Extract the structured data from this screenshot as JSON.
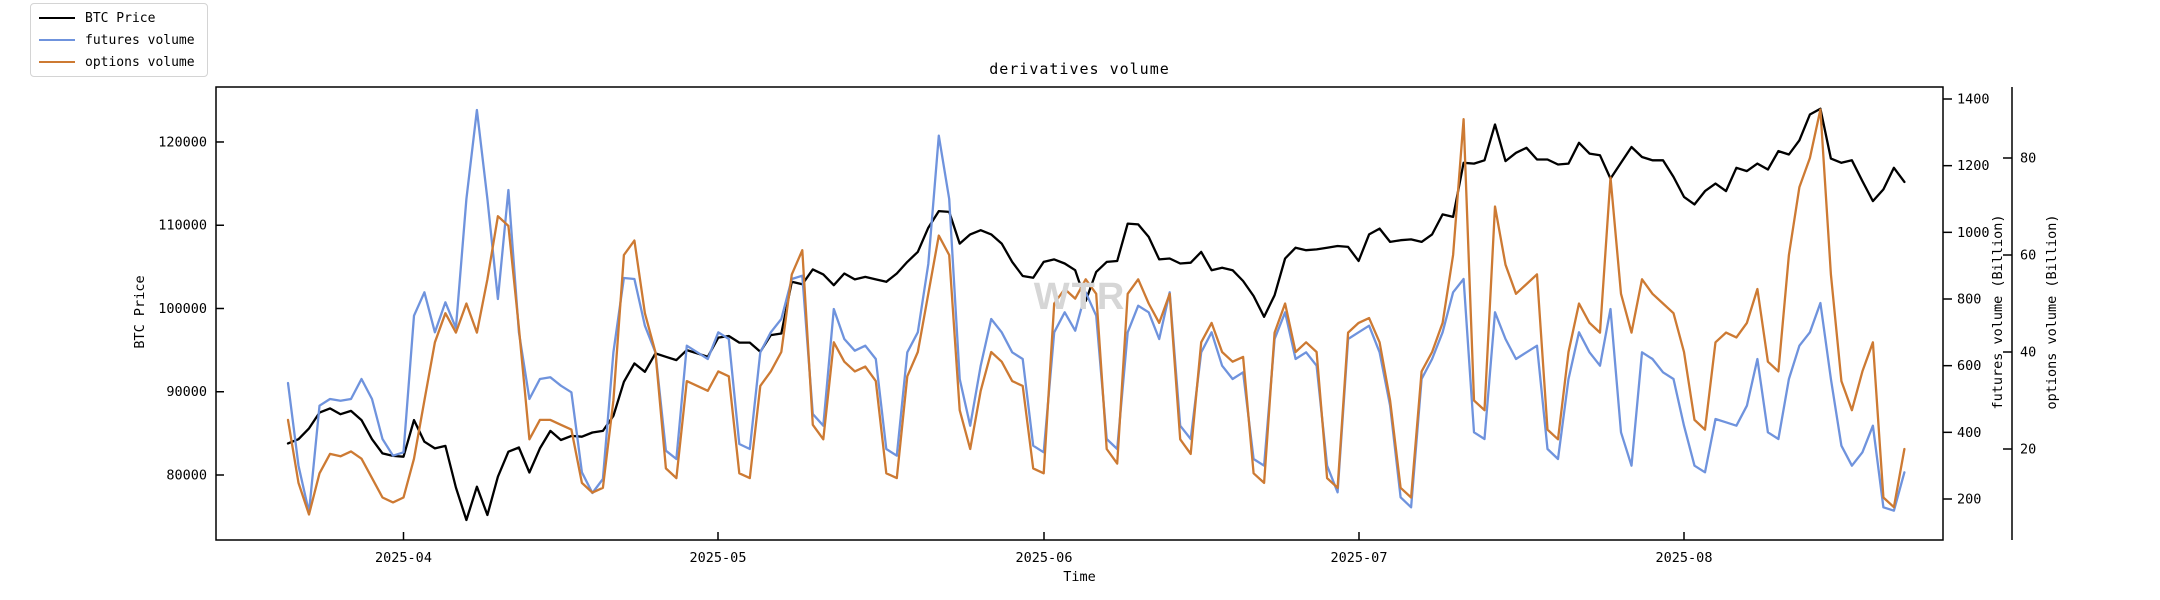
{
  "title": "derivatives volume",
  "watermark": "WTR",
  "legend": [
    {
      "label": "BTC Price",
      "color": "#000000"
    },
    {
      "label": "futures volume",
      "color": "#6f93dd"
    },
    {
      "label": "options volume",
      "color": "#cd7a33"
    }
  ],
  "axes": {
    "x": {
      "label": "Time",
      "tick_labels": [
        "2025-04",
        "2025-05",
        "2025-06",
        "2025-07",
        "2025-08"
      ]
    },
    "y_left": {
      "label": "BTC Price",
      "tick_labels": [
        "80000",
        "90000",
        "100000",
        "110000",
        "120000"
      ],
      "tick_values": [
        80000,
        90000,
        100000,
        110000,
        120000
      ]
    },
    "y_right_futures": {
      "label": "futures volume (Billion)",
      "tick_labels": [
        "200",
        "400",
        "600",
        "800",
        "1000",
        "1200",
        "1400"
      ],
      "tick_values": [
        200,
        400,
        600,
        800,
        1000,
        1200,
        1400
      ]
    },
    "y_right_options": {
      "label": "options volume (Billion)",
      "tick_labels": [
        "20",
        "40",
        "60",
        "80"
      ],
      "tick_values": [
        20,
        40,
        60,
        80
      ]
    }
  },
  "colors": {
    "btc": "#000000",
    "futures": "#6f93dd",
    "options": "#cd7a33",
    "spine": "#000000",
    "watermark": "#d6d6d6"
  },
  "chart_data": {
    "type": "line",
    "title": "derivatives volume",
    "xlabel": "Time",
    "x_start_date": "2025-03-21",
    "x_end_date": "2025-08-22",
    "x_frequency": "daily",
    "x_tick_labels": [
      "2025-04",
      "2025-05",
      "2025-06",
      "2025-07",
      "2025-08"
    ],
    "legend_position": "upper-left-outside",
    "grid": false,
    "ylim_left": [
      72200,
      126600
    ],
    "ylim_futures": [
      77,
      1436
    ],
    "ylim_options": [
      1.2,
      94.6
    ],
    "series": [
      {
        "name": "BTC Price",
        "axis": "left",
        "unit": "USD",
        "values": [
          83800,
          84300,
          85600,
          87500,
          88000,
          87300,
          87700,
          86600,
          84300,
          82600,
          82300,
          82200,
          86600,
          84000,
          83200,
          83500,
          78500,
          74600,
          78600,
          75200,
          79800,
          82800,
          83300,
          80300,
          83200,
          85300,
          84200,
          84700,
          84600,
          85100,
          85300,
          87100,
          91200,
          93400,
          92400,
          94600,
          94200,
          93800,
          95000,
          94600,
          94200,
          96500,
          96700,
          95900,
          95900,
          94800,
          96800,
          97000,
          103200,
          102900,
          104700,
          104100,
          102800,
          104200,
          103500,
          103800,
          103500,
          103200,
          104200,
          105600,
          106800,
          109700,
          111700,
          111600,
          107800,
          108900,
          109400,
          108900,
          107800,
          105600,
          103900,
          103700,
          105600,
          105900,
          105400,
          104600,
          100900,
          104400,
          105600,
          105700,
          110200,
          110100,
          108600,
          105900,
          106000,
          105400,
          105500,
          106800,
          104600,
          104900,
          104600,
          103300,
          101500,
          99000,
          101600,
          106000,
          107300,
          107000,
          107100,
          107300,
          107500,
          107400,
          105700,
          108900,
          109600,
          108000,
          108200,
          108300,
          108000,
          108900,
          111300,
          111000,
          117500,
          117400,
          117800,
          122100,
          117700,
          118700,
          119300,
          117900,
          117900,
          117300,
          117400,
          119900,
          118600,
          118400,
          115600,
          117500,
          119400,
          118200,
          117800,
          117800,
          115800,
          113400,
          112500,
          114100,
          115000,
          114100,
          116900,
          116500,
          117400,
          116700,
          118900,
          118500,
          120200,
          123300,
          124000,
          118000,
          117500,
          117800,
          115300,
          112900,
          114300,
          116900,
          115200
        ]
      },
      {
        "name": "futures volume",
        "axis": "right-futures",
        "unit": "Billion",
        "values": [
          548,
          300,
          160,
          480,
          500,
          495,
          500,
          560,
          500,
          380,
          330,
          340,
          750,
          820,
          700,
          790,
          713,
          1100,
          1367,
          1100,
          800,
          1127,
          700,
          500,
          560,
          565,
          540,
          520,
          280,
          218,
          260,
          640,
          863,
          860,
          720,
          640,
          345,
          320,
          660,
          640,
          620,
          700,
          680,
          365,
          350,
          640,
          700,
          740,
          860,
          870,
          455,
          420,
          770,
          680,
          645,
          660,
          620,
          350,
          330,
          640,
          700,
          905,
          1290,
          1100,
          560,
          420,
          600,
          740,
          700,
          640,
          620,
          360,
          340,
          700,
          760,
          705,
          820,
          750,
          380,
          350,
          700,
          780,
          760,
          680,
          820,
          420,
          380,
          640,
          700,
          600,
          560,
          580,
          320,
          300,
          680,
          760,
          620,
          640,
          600,
          300,
          220,
          680,
          700,
          720,
          640,
          480,
          205,
          175,
          560,
          620,
          700,
          820,
          860,
          400,
          380,
          760,
          680,
          620,
          640,
          660,
          350,
          320,
          560,
          700,
          640,
          600,
          770,
          400,
          300,
          640,
          620,
          580,
          560,
          420,
          300,
          280,
          440,
          430,
          420,
          480,
          620,
          400,
          380,
          560,
          660,
          700,
          788,
          560,
          360,
          300,
          340,
          420,
          175,
          165,
          280
        ]
      },
      {
        "name": "options volume",
        "axis": "right-options",
        "unit": "Billion",
        "values": [
          26,
          13,
          6.5,
          15,
          19,
          18.5,
          19.5,
          18,
          14,
          10,
          9,
          10,
          18,
          30,
          42,
          48,
          44,
          50,
          44,
          55,
          68,
          66,
          45,
          22,
          26,
          26,
          25,
          24,
          13,
          11,
          12,
          30,
          60,
          63,
          48,
          40,
          16,
          14,
          34,
          33,
          32,
          36,
          35,
          15,
          14,
          33,
          36,
          40,
          56,
          61,
          25,
          22,
          42,
          38,
          36,
          37,
          34,
          15,
          14,
          35,
          40,
          52,
          64,
          60,
          28,
          20,
          32,
          40,
          38,
          34,
          33,
          16,
          15,
          50,
          53,
          51,
          55,
          52,
          20,
          17,
          52,
          55,
          50,
          46,
          52,
          22,
          19,
          42,
          46,
          40,
          38,
          39,
          15,
          13,
          44,
          50,
          40,
          42,
          40,
          14,
          12,
          44,
          46,
          47,
          42,
          30,
          12,
          10,
          36,
          40,
          46,
          60,
          88,
          30,
          28,
          70,
          58,
          52,
          54,
          56,
          24,
          22,
          40,
          50,
          46,
          44,
          76,
          52,
          44,
          55,
          52,
          50,
          48,
          40,
          26,
          24,
          42,
          44,
          43,
          46,
          53,
          38,
          36,
          60,
          74,
          80,
          90,
          56,
          34,
          28,
          36,
          42,
          10,
          8,
          20
        ]
      }
    ]
  }
}
